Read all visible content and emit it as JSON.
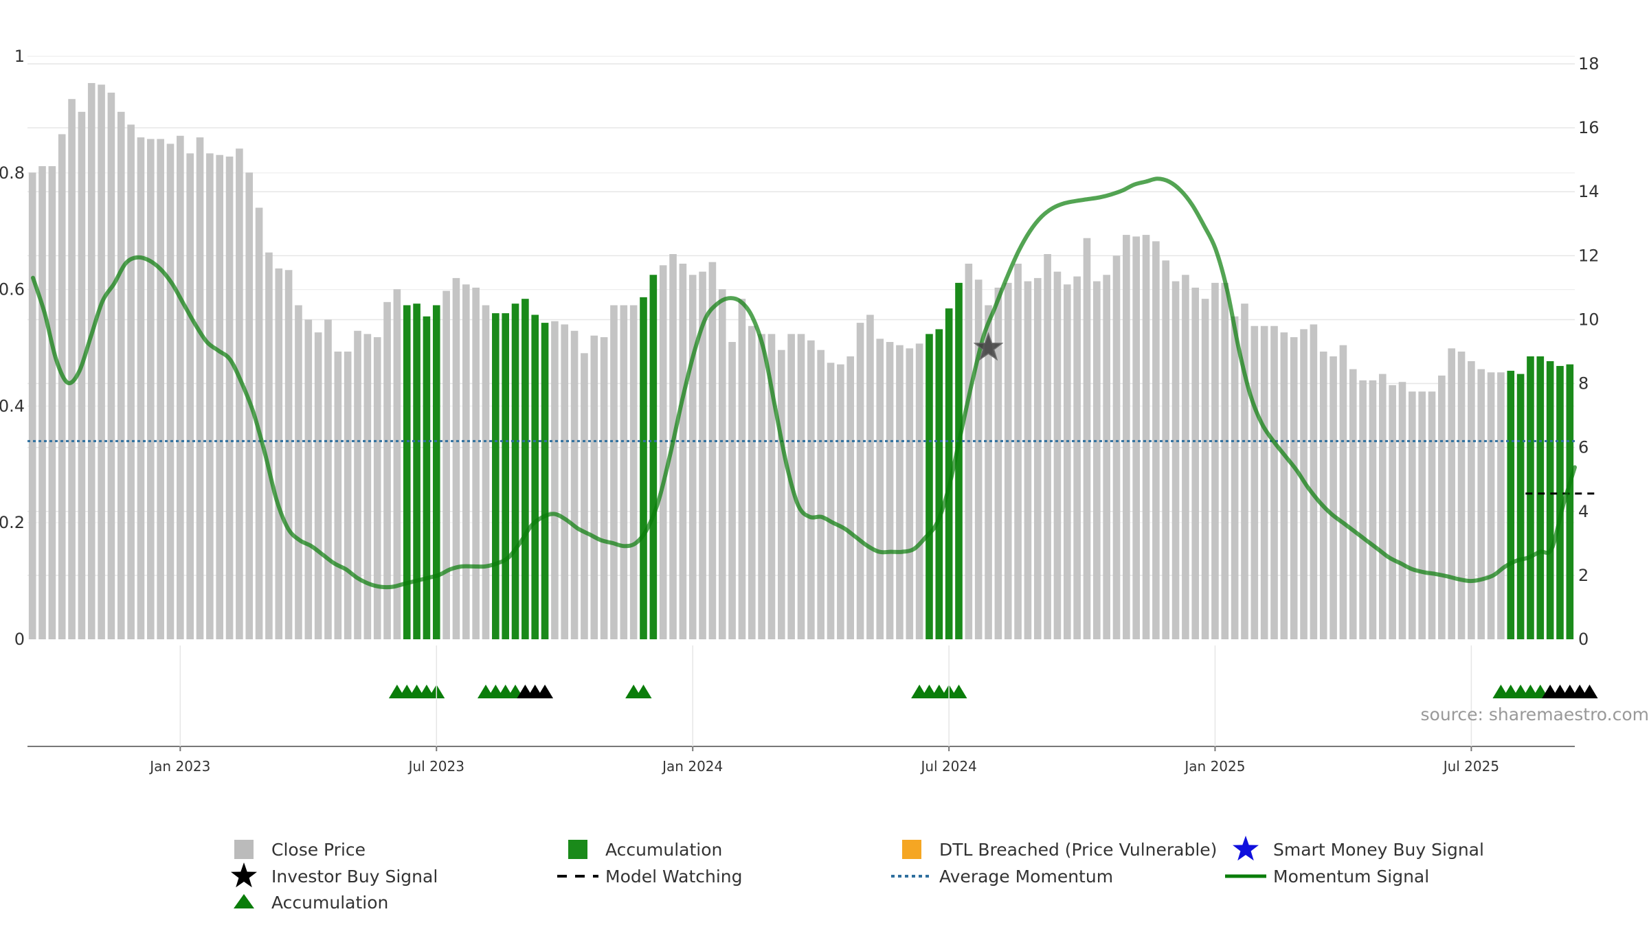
{
  "chart_data": {
    "type": "bar",
    "source": "source: sharemaestro.com",
    "left_axis": {
      "ticks": [
        "0",
        "0.2",
        "0.4",
        "0.6",
        "0.8",
        "1"
      ],
      "range": [
        0,
        1
      ]
    },
    "right_axis": {
      "ticks": [
        "0",
        "2",
        "4",
        "6",
        "8",
        "10",
        "12",
        "14",
        "16",
        "18"
      ],
      "range": [
        0,
        18
      ]
    },
    "x_ticks": [
      {
        "label": "Jan 2023",
        "week": 15
      },
      {
        "label": "Jul 2023",
        "week": 41
      },
      {
        "label": "Jan 2024",
        "week": 67
      },
      {
        "label": "Jul 2024",
        "week": 93
      },
      {
        "label": "Jan 2025",
        "week": 120
      },
      {
        "label": "Jul 2025",
        "week": 146
      }
    ],
    "average_momentum": 6.2,
    "series": [
      {
        "name": "Close Price",
        "axis": "right",
        "values": [
          14.6,
          14.8,
          14.8,
          15.8,
          16.9,
          16.5,
          17.4,
          17.35,
          17.1,
          16.5,
          16.1,
          15.7,
          15.65,
          15.65,
          15.5,
          15.75,
          15.2,
          15.7,
          15.2,
          15.15,
          15.1,
          15.35,
          14.6,
          13.5,
          12.1,
          11.6,
          11.55,
          10.45,
          10.0,
          9.6,
          10.0,
          9.0,
          9.0,
          9.65,
          9.55,
          9.45,
          10.55,
          10.95,
          10.45,
          10.5,
          10.1,
          10.45,
          10.9,
          11.3,
          11.1,
          11.0,
          10.45,
          10.2,
          10.2,
          10.5,
          10.65,
          10.15,
          9.9,
          9.95,
          9.85,
          9.65,
          8.95,
          9.5,
          9.45,
          10.45,
          10.45,
          10.45,
          10.7,
          11.4,
          11.7,
          12.05,
          11.75,
          11.4,
          11.5,
          11.8,
          10.95,
          9.3,
          10.65,
          9.8,
          9.55,
          9.55,
          9.05,
          9.55,
          9.55,
          9.35,
          9.05,
          8.65,
          8.6,
          8.85,
          9.9,
          10.15,
          9.4,
          9.3,
          9.2,
          9.1,
          9.25,
          9.55,
          9.7,
          10.35,
          11.15,
          11.75,
          11.25,
          10.45,
          11.0,
          11.15,
          11.75,
          11.2,
          11.3,
          12.05,
          11.5,
          11.1,
          11.35,
          12.55,
          11.2,
          11.4,
          12.0,
          12.65,
          12.6,
          12.65,
          12.45,
          11.85,
          11.2,
          11.4,
          11.0,
          10.65,
          11.15,
          11.15,
          10.1,
          10.5,
          9.8,
          9.8,
          9.8,
          9.6,
          9.45,
          9.7,
          9.85,
          9.0,
          8.85,
          9.2,
          8.45,
          8.1,
          8.1,
          8.3,
          7.95,
          8.05,
          7.75,
          7.75,
          7.75,
          8.25,
          9.1,
          9.0,
          8.7,
          8.45,
          8.35,
          8.35,
          8.4,
          8.3,
          8.85,
          8.85,
          8.7,
          8.55,
          8.6
        ],
        "accumulation_weeks": [
          38,
          39,
          40,
          41,
          47,
          48,
          49,
          50,
          51,
          52,
          62,
          63,
          91,
          92,
          93,
          94,
          150,
          151,
          152,
          153,
          154,
          155,
          156,
          157,
          158
        ]
      },
      {
        "name": "Momentum Signal",
        "axis": "left",
        "values": [
          0.62,
          0.56,
          0.48,
          0.44,
          0.46,
          0.52,
          0.58,
          0.61,
          0.645,
          0.655,
          0.65,
          0.635,
          0.61,
          0.575,
          0.54,
          0.51,
          0.495,
          0.48,
          0.44,
          0.39,
          0.32,
          0.24,
          0.19,
          0.17,
          0.16,
          0.145,
          0.13,
          0.12,
          0.105,
          0.095,
          0.09,
          0.09,
          0.095,
          0.1,
          0.105,
          0.11,
          0.12,
          0.125,
          0.125,
          0.125,
          0.13,
          0.14,
          0.165,
          0.195,
          0.21,
          0.215,
          0.205,
          0.19,
          0.18,
          0.17,
          0.165,
          0.16,
          0.165,
          0.19,
          0.24,
          0.32,
          0.41,
          0.49,
          0.55,
          0.575,
          0.585,
          0.58,
          0.555,
          0.5,
          0.4,
          0.3,
          0.23,
          0.21,
          0.21,
          0.2,
          0.19,
          0.175,
          0.16,
          0.15,
          0.15,
          0.15,
          0.155,
          0.175,
          0.2,
          0.26,
          0.35,
          0.44,
          0.52,
          0.57,
          0.62,
          0.665,
          0.7,
          0.725,
          0.74,
          0.748,
          0.752,
          0.755,
          0.758,
          0.763,
          0.77,
          0.78,
          0.785,
          0.79,
          0.785,
          0.77,
          0.745,
          0.71,
          0.67,
          0.6,
          0.5,
          0.42,
          0.37,
          0.34,
          0.315,
          0.29,
          0.26,
          0.235,
          0.215,
          0.2,
          0.185,
          0.17,
          0.155,
          0.14,
          0.13,
          0.12,
          0.115,
          0.112,
          0.108,
          0.103,
          0.1,
          0.103,
          0.11,
          0.125,
          0.135,
          0.14,
          0.15,
          0.155,
          0.23,
          0.295
        ]
      }
    ],
    "investor_buy_signal_week": 97,
    "model_watching": {
      "value": 0.25,
      "weeks": [
        152,
        158
      ]
    },
    "legend": [
      {
        "key": "close",
        "label": "Close Price",
        "color": "#bbbbbb"
      },
      {
        "key": "accum-bar",
        "label": "Accumulation",
        "color": "#1a8a1a"
      },
      {
        "key": "dtl",
        "label": "DTL Breached (Price Vulnerable)",
        "color": "#f5a623"
      },
      {
        "key": "smart",
        "label": "Smart Money Buy Signal",
        "color": "#1010dd"
      },
      {
        "key": "investor",
        "label": "Investor Buy Signal",
        "color": "#000000"
      },
      {
        "key": "watching",
        "label": "Model Watching",
        "color": "#000000"
      },
      {
        "key": "avgmom",
        "label": "Average Momentum",
        "color": "#2e6f9e"
      },
      {
        "key": "momentum",
        "label": "Momentum Signal",
        "color": "#0a7d0a"
      },
      {
        "key": "accum-tri",
        "label": "Accumulation",
        "color": "#0a7d0a"
      }
    ],
    "triangle_markers": [
      {
        "weeks": [
          37,
          38,
          39,
          40,
          41
        ],
        "color": "#0a7d0a"
      },
      {
        "weeks": [
          46,
          47,
          48,
          49
        ],
        "color": "#0a7d0a"
      },
      {
        "weeks": [
          50,
          51,
          52
        ],
        "color": "#000000"
      },
      {
        "weeks": [
          61,
          62
        ],
        "color": "#0a7d0a"
      },
      {
        "weeks": [
          90,
          91,
          92,
          93,
          94
        ],
        "color": "#0a7d0a"
      },
      {
        "weeks": [
          149,
          150,
          151,
          152,
          153
        ],
        "color": "#0a7d0a"
      },
      {
        "weeks": [
          154,
          155,
          156,
          157,
          158
        ],
        "color": "#000000"
      }
    ]
  }
}
